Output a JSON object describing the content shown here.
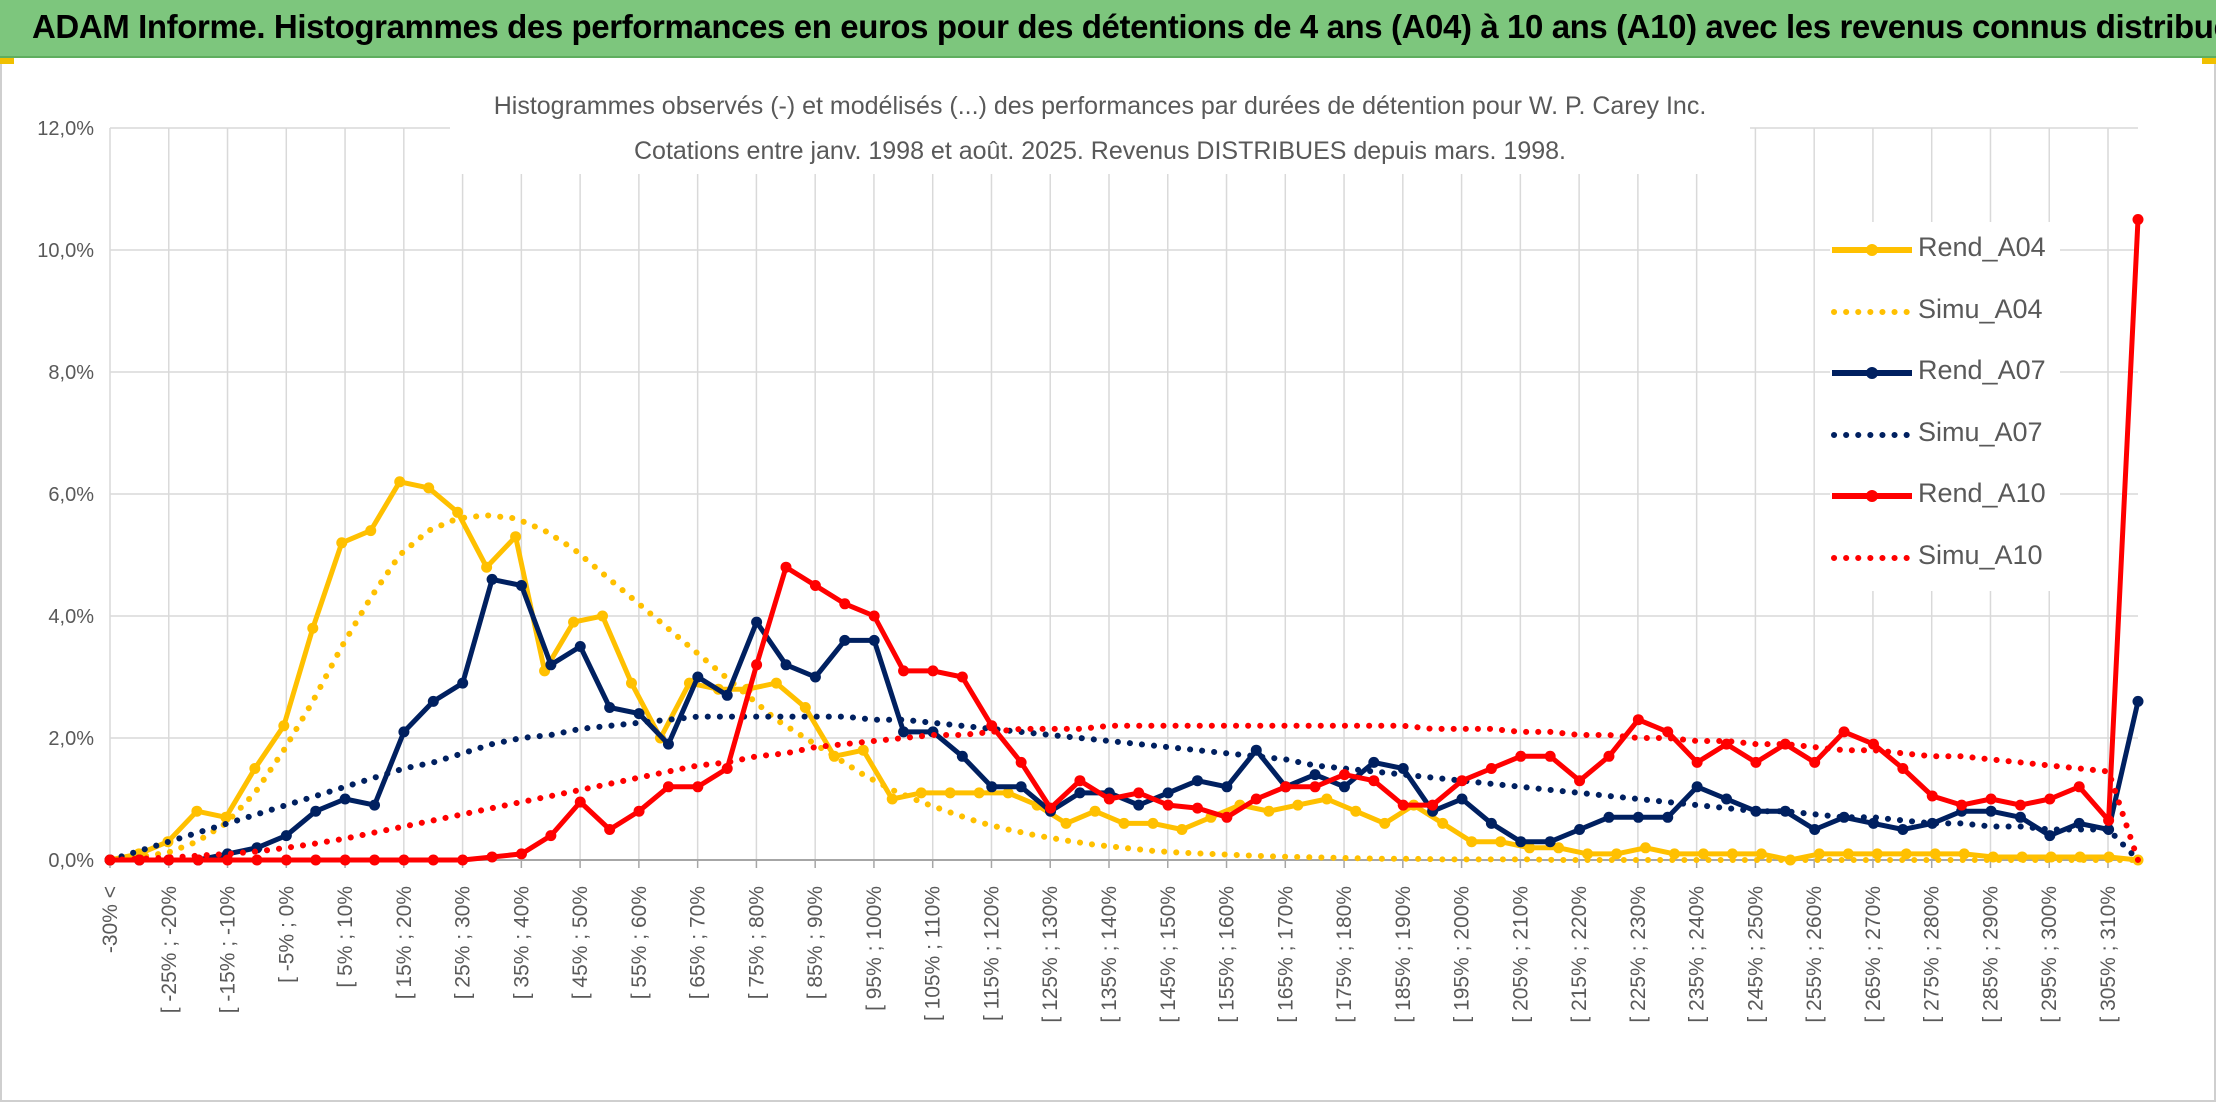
{
  "banner": {
    "title": "ADAM Informe. Histogrammes des performances en euros pour des détentions de 4 ans (A04) à 10 ans (A10) avec les revenus connus distribués"
  },
  "chart_title": {
    "line1": "Histogrammes observés (-) et modélisés (...) des performances par durées de détention pour W. P. Carey Inc.",
    "line2": "Cotations entre janv. 1998 et août. 2025. Revenus DISTRIBUES depuis mars. 1998."
  },
  "colors": {
    "A04": "#ffc000",
    "A07": "#002060",
    "A10": "#ff0000",
    "grid": "#d9d9d9",
    "axis_text": "#595959"
  },
  "legend": [
    {
      "label": "Rend_A04",
      "series": "Rend_A04"
    },
    {
      "label": "Simu_A04",
      "series": "Simu_A04"
    },
    {
      "label": "Rend_A07",
      "series": "Rend_A07"
    },
    {
      "label": "Simu_A07",
      "series": "Simu_A07"
    },
    {
      "label": "Rend_A10",
      "series": "Rend_A10"
    },
    {
      "label": "Simu_A10",
      "series": "Simu_A10"
    }
  ],
  "chart_data": {
    "type": "line",
    "title": "Histogrammes observés (-) et modélisés (...) des performances par durées de détention pour W. P. Carey Inc. Cotations entre janv. 1998 et août. 2025. Revenus DISTRIBUES depuis mars. 1998.",
    "ylim": [
      0,
      12
    ],
    "yticks": [
      "0,0%",
      "2,0%",
      "4,0%",
      "6,0%",
      "8,0%",
      "10,0%",
      "12,0%"
    ],
    "grid": true,
    "legend_position": "right",
    "x_labels": [
      "-30% <",
      "[ -25% ; -20%",
      "[ -15% ; -10%",
      "[ -5% ; 0%",
      "[ 5% ; 10%",
      "[ 15% ; 20%",
      "[ 25% ; 30%",
      "[ 35% ; 40%",
      "[ 45% ; 50%",
      "[ 55% ; 60%",
      "[ 65% ; 70%",
      "[ 75% ; 80%",
      "[ 85% ; 90%",
      "[ 95% ; 100%",
      "[ 105% ; 110%",
      "[ 115% ; 120%",
      "[ 125% ; 130%",
      "[ 135% ; 140%",
      "[ 145% ; 150%",
      "[ 155% ; 160%",
      "[ 165% ; 170%",
      "[ 175% ; 180%",
      "[ 185% ; 190%",
      "[ 195% ; 200%",
      "[ 205% ; 210%",
      "[ 215% ; 220%",
      "[ 225% ; 230%",
      "[ 235% ; 240%",
      "[ 245% ; 250%",
      "[ 255% ; 260%",
      "[ 265% ; 270%",
      "[ 275% ; 280%",
      "[ 285% ; 290%",
      "[ 295% ; 300%",
      "[ 305% ; 310%"
    ],
    "series": [
      {
        "name": "Rend_A04",
        "style": "solid",
        "color": "#ffc000",
        "values": [
          0.0,
          0.1,
          0.3,
          0.8,
          0.7,
          1.5,
          2.2,
          3.8,
          5.2,
          5.4,
          6.2,
          6.1,
          5.7,
          4.8,
          5.3,
          3.1,
          3.9,
          4.0,
          2.9,
          2.0,
          2.9,
          2.8,
          2.8,
          2.9,
          2.5,
          1.7,
          1.8,
          1.0,
          1.1,
          1.1,
          1.1,
          1.1,
          0.9,
          0.6,
          0.8,
          0.6,
          0.6,
          0.5,
          0.7,
          0.9,
          0.8,
          0.9,
          1.0,
          0.8,
          0.6,
          0.9,
          0.6,
          0.3,
          0.3,
          0.2,
          0.2,
          0.1,
          0.1,
          0.2,
          0.1,
          0.1,
          0.1,
          0.1,
          0.0,
          0.1,
          0.1,
          0.1,
          0.1,
          0.1,
          0.1,
          0.05,
          0.05,
          0.05,
          0.05,
          0.05,
          0.0
        ]
      },
      {
        "name": "Simu_A04",
        "style": "dotted",
        "color": "#ffc000",
        "values": [
          0.0,
          0.05,
          0.12,
          0.3,
          0.6,
          1.1,
          1.8,
          2.6,
          3.5,
          4.3,
          5.0,
          5.4,
          5.6,
          5.65,
          5.6,
          5.4,
          5.1,
          4.7,
          4.3,
          3.9,
          3.5,
          3.1,
          2.7,
          2.3,
          2.0,
          1.7,
          1.4,
          1.15,
          0.95,
          0.78,
          0.62,
          0.5,
          0.4,
          0.32,
          0.25,
          0.2,
          0.15,
          0.12,
          0.1,
          0.08,
          0.06,
          0.05,
          0.04,
          0.03,
          0.02,
          0.02,
          0.01,
          0.01,
          0.01,
          0.01,
          0.0,
          0.0,
          0.0,
          0.0,
          0.0,
          0.0,
          0.0,
          0.0,
          0.0,
          0.0,
          0.0,
          0.0,
          0.0,
          0.0,
          0.0,
          0.0,
          0.0,
          0.0,
          0.0,
          0.0,
          0.0
        ]
      },
      {
        "name": "Rend_A07",
        "style": "solid",
        "color": "#002060",
        "values": [
          0.0,
          0.0,
          0.0,
          0.0,
          0.1,
          0.2,
          0.4,
          0.8,
          1.0,
          0.9,
          2.1,
          2.6,
          2.9,
          4.6,
          4.5,
          3.2,
          3.5,
          2.5,
          2.4,
          1.9,
          3.0,
          2.7,
          3.9,
          3.2,
          3.0,
          3.6,
          3.6,
          2.1,
          2.1,
          1.7,
          1.2,
          1.2,
          0.8,
          1.1,
          1.1,
          0.9,
          1.1,
          1.3,
          1.2,
          1.8,
          1.2,
          1.4,
          1.2,
          1.6,
          1.5,
          0.8,
          1.0,
          0.6,
          0.3,
          0.3,
          0.5,
          0.7,
          0.7,
          0.7,
          1.2,
          1.0,
          0.8,
          0.8,
          0.5,
          0.7,
          0.6,
          0.5,
          0.6,
          0.8,
          0.8,
          0.7,
          0.4,
          0.6,
          0.5,
          2.6
        ]
      },
      {
        "name": "Simu_A07",
        "style": "dotted",
        "color": "#002060",
        "values": [
          0.0,
          0.15,
          0.3,
          0.45,
          0.6,
          0.75,
          0.9,
          1.05,
          1.2,
          1.35,
          1.5,
          1.6,
          1.75,
          1.9,
          2.0,
          2.05,
          2.15,
          2.2,
          2.25,
          2.3,
          2.35,
          2.35,
          2.35,
          2.35,
          2.35,
          2.35,
          2.3,
          2.3,
          2.25,
          2.2,
          2.15,
          2.1,
          2.05,
          2.0,
          1.95,
          1.9,
          1.85,
          1.8,
          1.75,
          1.7,
          1.65,
          1.55,
          1.5,
          1.45,
          1.4,
          1.35,
          1.3,
          1.25,
          1.2,
          1.15,
          1.1,
          1.05,
          1.0,
          0.95,
          0.9,
          0.85,
          0.8,
          0.8,
          0.75,
          0.7,
          0.7,
          0.65,
          0.6,
          0.6,
          0.55,
          0.55,
          0.5,
          0.5,
          0.5,
          0.0
        ]
      },
      {
        "name": "Rend_A10",
        "style": "solid",
        "color": "#ff0000",
        "values": [
          0.0,
          0.0,
          0.0,
          0.0,
          0.0,
          0.0,
          0.0,
          0.0,
          0.0,
          0.0,
          0.0,
          0.0,
          0.0,
          0.05,
          0.1,
          0.4,
          0.95,
          0.5,
          0.8,
          1.2,
          1.2,
          1.5,
          3.2,
          4.8,
          4.5,
          4.2,
          4.0,
          3.1,
          3.1,
          3.0,
          2.2,
          1.6,
          0.85,
          1.3,
          1.0,
          1.1,
          0.9,
          0.85,
          0.7,
          1.0,
          1.2,
          1.2,
          1.4,
          1.3,
          0.9,
          0.9,
          1.3,
          1.5,
          1.7,
          1.7,
          1.3,
          1.7,
          2.3,
          2.1,
          1.6,
          1.9,
          1.6,
          1.9,
          1.6,
          2.1,
          1.9,
          1.5,
          1.05,
          0.9,
          1.0,
          0.9,
          1.0,
          1.2,
          0.65,
          10.5
        ]
      },
      {
        "name": "Simu_A10",
        "style": "dotted",
        "color": "#ff0000",
        "values": [
          0.0,
          0.02,
          0.04,
          0.07,
          0.1,
          0.14,
          0.2,
          0.27,
          0.35,
          0.45,
          0.55,
          0.65,
          0.75,
          0.85,
          0.95,
          1.05,
          1.15,
          1.25,
          1.35,
          1.45,
          1.55,
          1.6,
          1.7,
          1.75,
          1.85,
          1.9,
          1.95,
          2.0,
          2.05,
          2.05,
          2.1,
          2.15,
          2.15,
          2.15,
          2.2,
          2.2,
          2.2,
          2.2,
          2.2,
          2.2,
          2.2,
          2.2,
          2.2,
          2.2,
          2.2,
          2.15,
          2.15,
          2.15,
          2.1,
          2.1,
          2.05,
          2.05,
          2.0,
          2.0,
          1.95,
          1.95,
          1.9,
          1.9,
          1.85,
          1.8,
          1.8,
          1.75,
          1.7,
          1.7,
          1.65,
          1.6,
          1.55,
          1.5,
          1.45,
          0.0
        ]
      }
    ]
  }
}
